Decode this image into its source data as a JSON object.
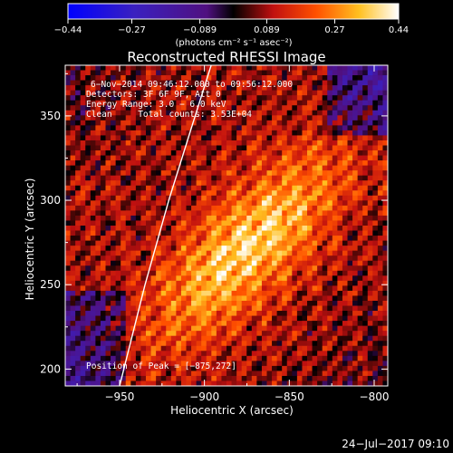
{
  "chart_data": {
    "type": "heatmap",
    "title": "Reconstructed RHESSI Image",
    "xlabel": "Heliocentric X (arcsec)",
    "ylabel": "Heliocentric Y (arcsec)",
    "xlim": [
      -982,
      -792
    ],
    "ylim": [
      190,
      380
    ],
    "x_ticks": [
      -950,
      -900,
      -850,
      -800
    ],
    "x_tick_labels": [
      "−950",
      "−900",
      "−850",
      "−800"
    ],
    "y_ticks": [
      200,
      250,
      300,
      350
    ],
    "y_tick_labels": [
      "200",
      "250",
      "300",
      "350"
    ],
    "colorbar": {
      "min": -0.44,
      "max": 0.44,
      "tick_values": [
        -0.44,
        -0.27,
        -0.089,
        0.089,
        0.27,
        0.44
      ],
      "tick_labels": [
        "−0.44",
        "−0.27",
        "−0.089",
        "0.089",
        "0.27",
        "0.44"
      ],
      "unit_label": "(photons cm⁻² s⁻¹ asec⁻²)"
    },
    "annotations": [
      "6−Nov−2014 09:46:12.000 to 09:56:12.000",
      "Detectors: 3F 6F 9F, Att 0",
      "Energy Range: 3.0 − 6.0 keV",
      "Clean     Total counts: 3.53E+04"
    ],
    "peak_label": "Position of Peak = [−875,272]",
    "peak": [
      -875,
      272
    ],
    "limb_points": [
      [
        -950,
        190
      ],
      [
        -935,
        250
      ],
      [
        -921,
        300
      ],
      [
        -907,
        345
      ],
      [
        -896,
        380
      ]
    ],
    "grid": false
  },
  "footer": {
    "timestamp": "24−Jul−2017 09:10"
  },
  "colors": {
    "background": "#000000",
    "foreground": "#ffffff",
    "colormap_low": "#0000ff",
    "colormap_zero": "#000000",
    "colormap_high": "#ffffff"
  }
}
